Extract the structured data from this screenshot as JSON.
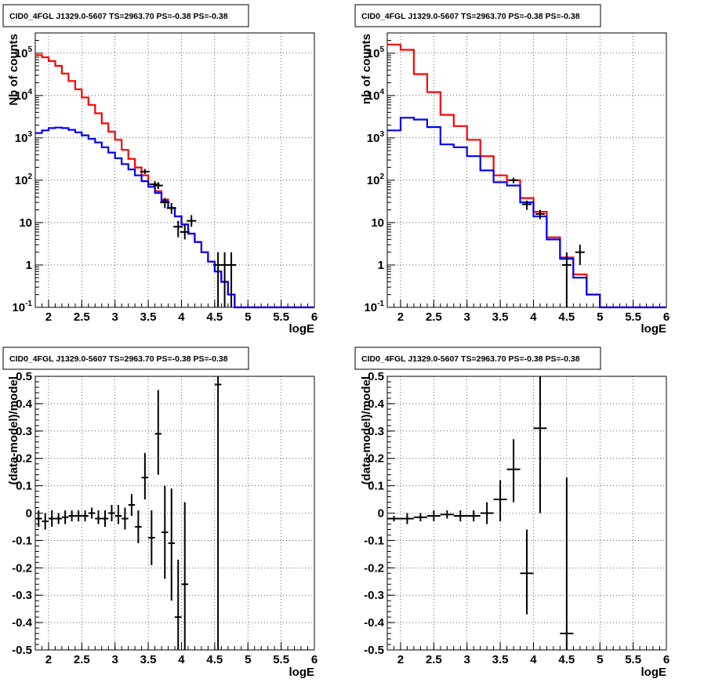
{
  "chart_data": [
    {
      "type": "line",
      "title": "CID0_4FGL J1329.0-5607 TS=2963.70 PS=-0.38 PS=-0.38",
      "xlabel": "logE",
      "ylabel": "Nb of counts",
      "xlim": [
        1.8,
        6.0
      ],
      "ylim": [
        0.1,
        300000
      ],
      "yscale": "log",
      "grid": true,
      "xticks": [
        "2",
        "2.5",
        "3",
        "3.5",
        "4",
        "4.5",
        "5",
        "5.5",
        "6"
      ],
      "yticks": [
        "10^-1",
        "1",
        "10",
        "10^2",
        "10^3",
        "10^4",
        "10^5"
      ],
      "bin_edges": [
        1.8,
        1.9,
        2.0,
        2.1,
        2.2,
        2.3,
        2.4,
        2.5,
        2.6,
        2.7,
        2.8,
        2.9,
        3.0,
        3.1,
        3.2,
        3.3,
        3.4,
        3.5,
        3.6,
        3.7,
        3.8,
        3.9,
        4.0,
        4.1,
        4.2,
        4.3,
        4.4,
        4.5,
        4.6,
        4.7,
        4.8,
        4.9,
        5.0,
        5.1,
        5.2,
        5.3,
        5.4,
        5.5,
        5.6,
        5.7,
        5.8,
        5.9,
        6.0
      ],
      "series": [
        {
          "color": "#ff0000",
          "style": "step",
          "values": [
            90000,
            80000,
            65000,
            50000,
            33000,
            22000,
            14000,
            9000,
            6000,
            3800,
            2200,
            1400,
            900,
            520,
            320,
            200,
            130,
            80,
            55,
            35,
            22,
            14,
            9,
            5.5,
            3.5,
            2.0,
            1.2,
            0.7,
            0.4,
            0.2,
            0.1,
            0.1,
            0.1,
            0.1,
            0.1,
            0.1,
            0.1,
            0.1,
            0.1,
            0.1,
            0.1,
            0.1
          ]
        },
        {
          "color": "#0000ff",
          "style": "step",
          "values": [
            1300,
            1500,
            1700,
            1750,
            1700,
            1550,
            1350,
            1150,
            950,
            780,
            600,
            450,
            330,
            240,
            180,
            130,
            95,
            70,
            50,
            32,
            22,
            14,
            9,
            5.5,
            3.5,
            2.0,
            1.2,
            0.7,
            0.4,
            0.2,
            0.1,
            0.1,
            0.1,
            0.1,
            0.1,
            0.1,
            0.1,
            0.1,
            0.1,
            0.1,
            0.1,
            0.1
          ]
        },
        {
          "color": "#000000",
          "style": "errorbar",
          "points": [
            {
              "x": 3.45,
              "y": 160,
              "ylo": 140,
              "yhi": 185
            },
            {
              "x": 3.6,
              "y": 80,
              "ylo": 65,
              "yhi": 95
            },
            {
              "x": 3.65,
              "y": 75,
              "ylo": 62,
              "yhi": 90
            },
            {
              "x": 3.75,
              "y": 30,
              "ylo": 22,
              "yhi": 38
            },
            {
              "x": 3.85,
              "y": 22,
              "ylo": 16,
              "yhi": 29
            },
            {
              "x": 3.95,
              "y": 8,
              "ylo": 4.5,
              "yhi": 11
            },
            {
              "x": 4.05,
              "y": 6,
              "ylo": 4,
              "yhi": 9
            },
            {
              "x": 4.15,
              "y": 11,
              "ylo": 8,
              "yhi": 15
            },
            {
              "x": 4.55,
              "y": 1,
              "ylo": 0.1,
              "yhi": 2
            },
            {
              "x": 4.65,
              "y": 1,
              "ylo": 0.1,
              "yhi": 2
            },
            {
              "x": 4.75,
              "y": 1,
              "ylo": 0.1,
              "yhi": 2
            }
          ]
        }
      ]
    },
    {
      "type": "line",
      "title": "CID0_4FGL J1329.0-5607 TS=2963.70 PS=-0.38 PS=-0.38",
      "xlabel": "logE",
      "ylabel": "nb of counts",
      "xlim": [
        1.8,
        6.0
      ],
      "ylim": [
        0.1,
        300000
      ],
      "yscale": "log",
      "grid": true,
      "xticks": [
        "2",
        "2.5",
        "3",
        "3.5",
        "4",
        "4.5",
        "5",
        "5.5",
        "6"
      ],
      "yticks": [
        "10^-1",
        "1",
        "10",
        "10^2",
        "10^3",
        "10^4",
        "10^5"
      ],
      "bin_edges": [
        1.8,
        2.0,
        2.2,
        2.4,
        2.6,
        2.8,
        3.0,
        3.2,
        3.4,
        3.6,
        3.8,
        4.0,
        4.2,
        4.4,
        4.6,
        4.8,
        5.0,
        5.2,
        5.4,
        5.6,
        5.8,
        6.0
      ],
      "series": [
        {
          "color": "#ff0000",
          "style": "step",
          "values": [
            160000,
            120000,
            32000,
            12000,
            3500,
            1900,
            900,
            370,
            130,
            100,
            38,
            18,
            4.5,
            1.5,
            0.6,
            0.2,
            0.1,
            0.1,
            0.1,
            0.1,
            0.1
          ]
        },
        {
          "color": "#0000ff",
          "style": "step",
          "values": [
            1500,
            3000,
            2700,
            1800,
            700,
            600,
            370,
            170,
            90,
            75,
            30,
            14,
            4,
            1.4,
            0.5,
            0.2,
            0.1,
            0.1,
            0.1,
            0.1,
            0.1
          ]
        },
        {
          "color": "#000000",
          "style": "errorbar",
          "points": [
            {
              "x": 3.7,
              "y": 100,
              "ylo": 85,
              "yhi": 115
            },
            {
              "x": 3.9,
              "y": 27,
              "ylo": 20,
              "yhi": 33
            },
            {
              "x": 4.1,
              "y": 16,
              "ylo": 12,
              "yhi": 20
            },
            {
              "x": 4.5,
              "y": 1,
              "ylo": 0.1,
              "yhi": 2
            },
            {
              "x": 4.7,
              "y": 2,
              "ylo": 1,
              "yhi": 3
            }
          ]
        }
      ]
    },
    {
      "type": "scatter",
      "title": "CID0_4FGL J1329.0-5607 TS=2963.70 PS=-0.38 PS=-0.38",
      "xlabel": "logE",
      "ylabel": "(data-model)/model",
      "xlim": [
        1.8,
        6.0
      ],
      "ylim": [
        -0.5,
        0.5
      ],
      "grid": true,
      "xticks": [
        "2",
        "2.5",
        "3",
        "3.5",
        "4",
        "4.5",
        "5",
        "5.5",
        "6"
      ],
      "yticks": [
        "-0.5",
        "-0.4",
        "-0.3",
        "-0.2",
        "-0.1",
        "0",
        "0.1",
        "0.2",
        "0.3",
        "0.4",
        "0.5"
      ],
      "xerr": 0.05,
      "points": [
        {
          "x": 1.85,
          "y": -0.02,
          "ylo": -0.05,
          "yhi": 0.01
        },
        {
          "x": 1.95,
          "y": -0.03,
          "ylo": -0.06,
          "yhi": 0.0
        },
        {
          "x": 2.05,
          "y": -0.02,
          "ylo": -0.05,
          "yhi": 0.01
        },
        {
          "x": 2.15,
          "y": -0.02,
          "ylo": -0.04,
          "yhi": 0.0
        },
        {
          "x": 2.25,
          "y": -0.015,
          "ylo": -0.04,
          "yhi": 0.01
        },
        {
          "x": 2.35,
          "y": -0.01,
          "ylo": -0.03,
          "yhi": 0.01
        },
        {
          "x": 2.45,
          "y": -0.01,
          "ylo": -0.03,
          "yhi": 0.01
        },
        {
          "x": 2.55,
          "y": -0.01,
          "ylo": -0.03,
          "yhi": 0.01
        },
        {
          "x": 2.65,
          "y": 0.0,
          "ylo": -0.02,
          "yhi": 0.02
        },
        {
          "x": 2.75,
          "y": -0.02,
          "ylo": -0.04,
          "yhi": 0.01
        },
        {
          "x": 2.85,
          "y": -0.02,
          "ylo": -0.05,
          "yhi": 0.01
        },
        {
          "x": 2.95,
          "y": 0.0,
          "ylo": -0.03,
          "yhi": 0.03
        },
        {
          "x": 3.05,
          "y": -0.01,
          "ylo": -0.04,
          "yhi": 0.03
        },
        {
          "x": 3.15,
          "y": -0.02,
          "ylo": -0.06,
          "yhi": 0.02
        },
        {
          "x": 3.25,
          "y": 0.03,
          "ylo": -0.01,
          "yhi": 0.07
        },
        {
          "x": 3.35,
          "y": -0.05,
          "ylo": -0.11,
          "yhi": 0.01
        },
        {
          "x": 3.45,
          "y": 0.13,
          "ylo": 0.05,
          "yhi": 0.22
        },
        {
          "x": 3.55,
          "y": -0.09,
          "ylo": -0.19,
          "yhi": 0.01
        },
        {
          "x": 3.65,
          "y": 0.29,
          "ylo": 0.14,
          "yhi": 0.45
        },
        {
          "x": 3.75,
          "y": -0.07,
          "ylo": -0.24,
          "yhi": 0.1
        },
        {
          "x": 3.85,
          "y": -0.11,
          "ylo": -0.32,
          "yhi": 0.09
        },
        {
          "x": 3.95,
          "y": -0.38,
          "ylo": -0.5,
          "yhi": -0.17
        },
        {
          "x": 4.05,
          "y": -0.26,
          "ylo": -0.5,
          "yhi": 0.04
        },
        {
          "x": 4.55,
          "y": 0.47,
          "ylo": -0.5,
          "yhi": 0.5
        }
      ]
    },
    {
      "type": "scatter",
      "title": "CID0_4FGL J1329.0-5607 TS=2963.70 PS=-0.38 PS=-0.38",
      "xlabel": "logE",
      "ylabel": "(data-model)/model",
      "xlim": [
        1.8,
        6.0
      ],
      "ylim": [
        -0.5,
        0.5
      ],
      "grid": true,
      "xticks": [
        "2",
        "2.5",
        "3",
        "3.5",
        "4",
        "4.5",
        "5",
        "5.5",
        "6"
      ],
      "yticks": [
        "-0.5",
        "-0.4",
        "-0.3",
        "-0.2",
        "-0.1",
        "0",
        "0.1",
        "0.2",
        "0.3",
        "0.4",
        "0.5"
      ],
      "xerr": 0.1,
      "points": [
        {
          "x": 1.9,
          "y": -0.02,
          "ylo": -0.03,
          "yhi": -0.01
        },
        {
          "x": 2.1,
          "y": -0.02,
          "ylo": -0.04,
          "yhi": 0.0
        },
        {
          "x": 2.3,
          "y": -0.015,
          "ylo": -0.03,
          "yhi": 0.0
        },
        {
          "x": 2.5,
          "y": -0.01,
          "ylo": -0.03,
          "yhi": 0.01
        },
        {
          "x": 2.7,
          "y": -0.005,
          "ylo": -0.02,
          "yhi": 0.01
        },
        {
          "x": 2.9,
          "y": -0.01,
          "ylo": -0.03,
          "yhi": 0.01
        },
        {
          "x": 3.1,
          "y": -0.01,
          "ylo": -0.03,
          "yhi": 0.01
        },
        {
          "x": 3.3,
          "y": 0.0,
          "ylo": -0.04,
          "yhi": 0.04
        },
        {
          "x": 3.5,
          "y": 0.05,
          "ylo": -0.03,
          "yhi": 0.12
        },
        {
          "x": 3.7,
          "y": 0.16,
          "ylo": 0.04,
          "yhi": 0.27
        },
        {
          "x": 3.9,
          "y": -0.22,
          "ylo": -0.37,
          "yhi": -0.06
        },
        {
          "x": 4.1,
          "y": 0.31,
          "ylo": 0.0,
          "yhi": 0.5
        },
        {
          "x": 4.5,
          "y": -0.44,
          "ylo": -0.5,
          "yhi": 0.13
        }
      ]
    }
  ]
}
